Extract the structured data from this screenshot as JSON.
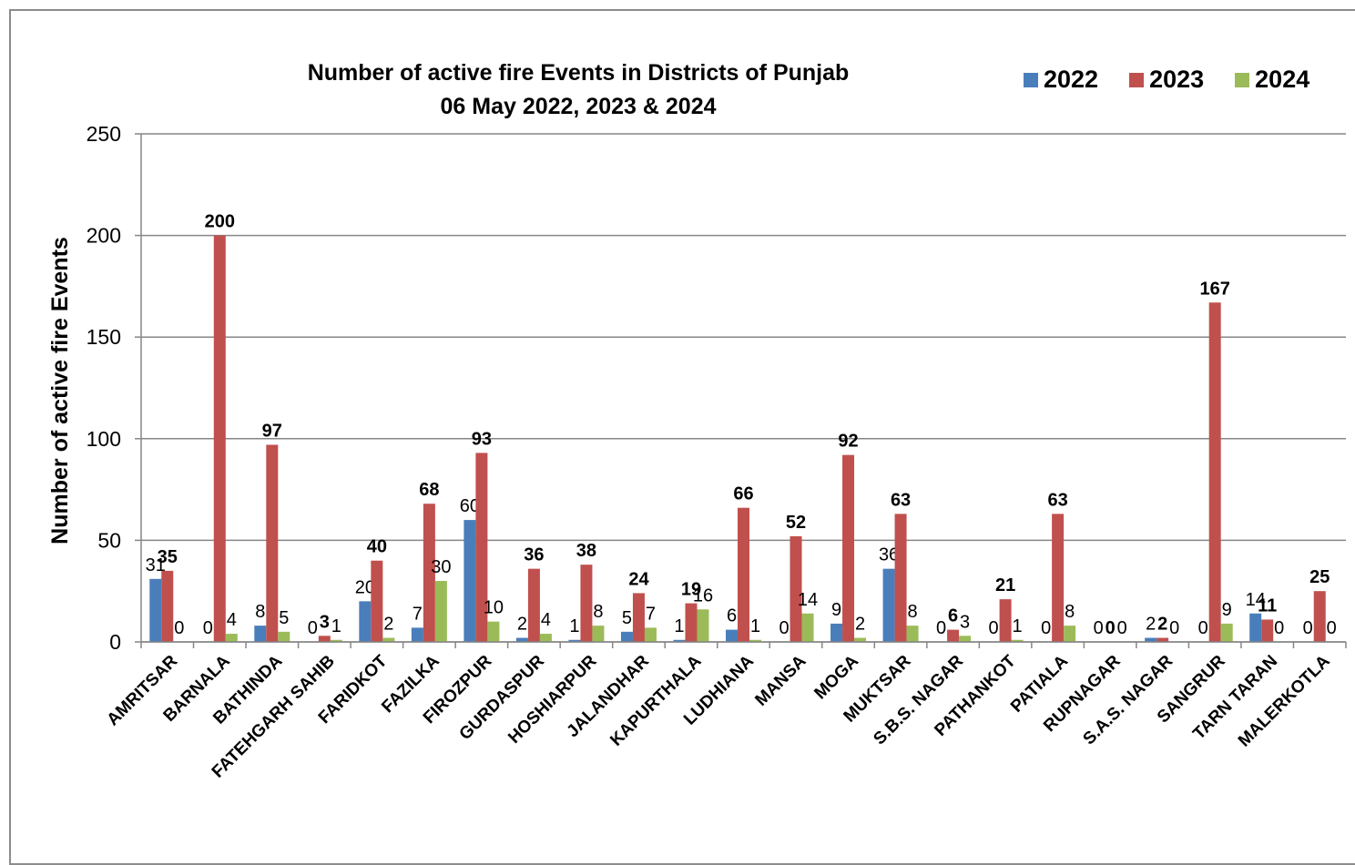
{
  "chart_data": {
    "type": "bar",
    "title": "Number of active fire Events in Districts of Punjab",
    "subtitle": "06 May 2022, 2023 & 2024",
    "xlabel": "",
    "ylabel": "Number of active fire Events",
    "ylim": [
      0,
      250
    ],
    "yticks": [
      0,
      50,
      100,
      150,
      200,
      250
    ],
    "grid": true,
    "legend_position": "top-right",
    "categories": [
      "AMRITSAR",
      "BARNALA",
      "BATHINDA",
      "FATEHGARH SAHIB",
      "FARIDKOT",
      "FAZILKA",
      "FIROZPUR",
      "GURDASPUR",
      "HOSHIARPUR",
      "JALANDHAR",
      "KAPURTHALA",
      "LUDHIANA",
      "MANSA",
      "MOGA",
      "MUKTSAR",
      "S.B.S. NAGAR",
      "PATHANKOT",
      "PATIALA",
      "RUPNAGAR",
      "S.A.S. NAGAR",
      "SANGRUR",
      "TARN TARAN",
      "MALERKOTLA"
    ],
    "series": [
      {
        "name": "2022",
        "color": "#4a7ebb",
        "values": [
          31,
          0,
          8,
          0,
          20,
          7,
          60,
          2,
          1,
          5,
          1,
          6,
          0,
          9,
          36,
          0,
          0,
          0,
          0,
          2,
          0,
          14,
          0
        ],
        "labels": [
          "31",
          "0",
          "8",
          "0",
          "20",
          "7",
          "60",
          "2",
          "1",
          "5",
          "1",
          "6",
          "0",
          "9",
          "36",
          "0",
          "0",
          "0",
          "0",
          "2",
          "0",
          "14",
          "0"
        ]
      },
      {
        "name": "2023",
        "color": "#c0504d",
        "values": [
          35,
          200,
          97,
          3,
          40,
          68,
          93,
          36,
          38,
          24,
          19,
          66,
          52,
          92,
          63,
          6,
          21,
          63,
          0,
          2,
          167,
          11,
          25
        ],
        "labels": [
          "35",
          "200",
          "97",
          "3",
          "40",
          "68",
          "93",
          "36",
          "38",
          "24",
          "19",
          "66",
          "52",
          "92",
          "63",
          "6",
          "21",
          "63",
          "0",
          "2",
          "167",
          "11",
          "25"
        ]
      },
      {
        "name": "2024",
        "color": "#9bbb59",
        "values": [
          0,
          4,
          5,
          1,
          2,
          30,
          10,
          4,
          8,
          7,
          16,
          1,
          14,
          2,
          8,
          3,
          1,
          8,
          0,
          0,
          9,
          0,
          0
        ],
        "labels": [
          "0",
          "4",
          "5",
          "1",
          "2",
          "30",
          "10",
          "4",
          "8",
          "7",
          "16",
          "1",
          "14",
          "2",
          "8",
          "3",
          "1",
          "8",
          "0",
          "0",
          "9",
          "0",
          "0"
        ]
      }
    ]
  }
}
